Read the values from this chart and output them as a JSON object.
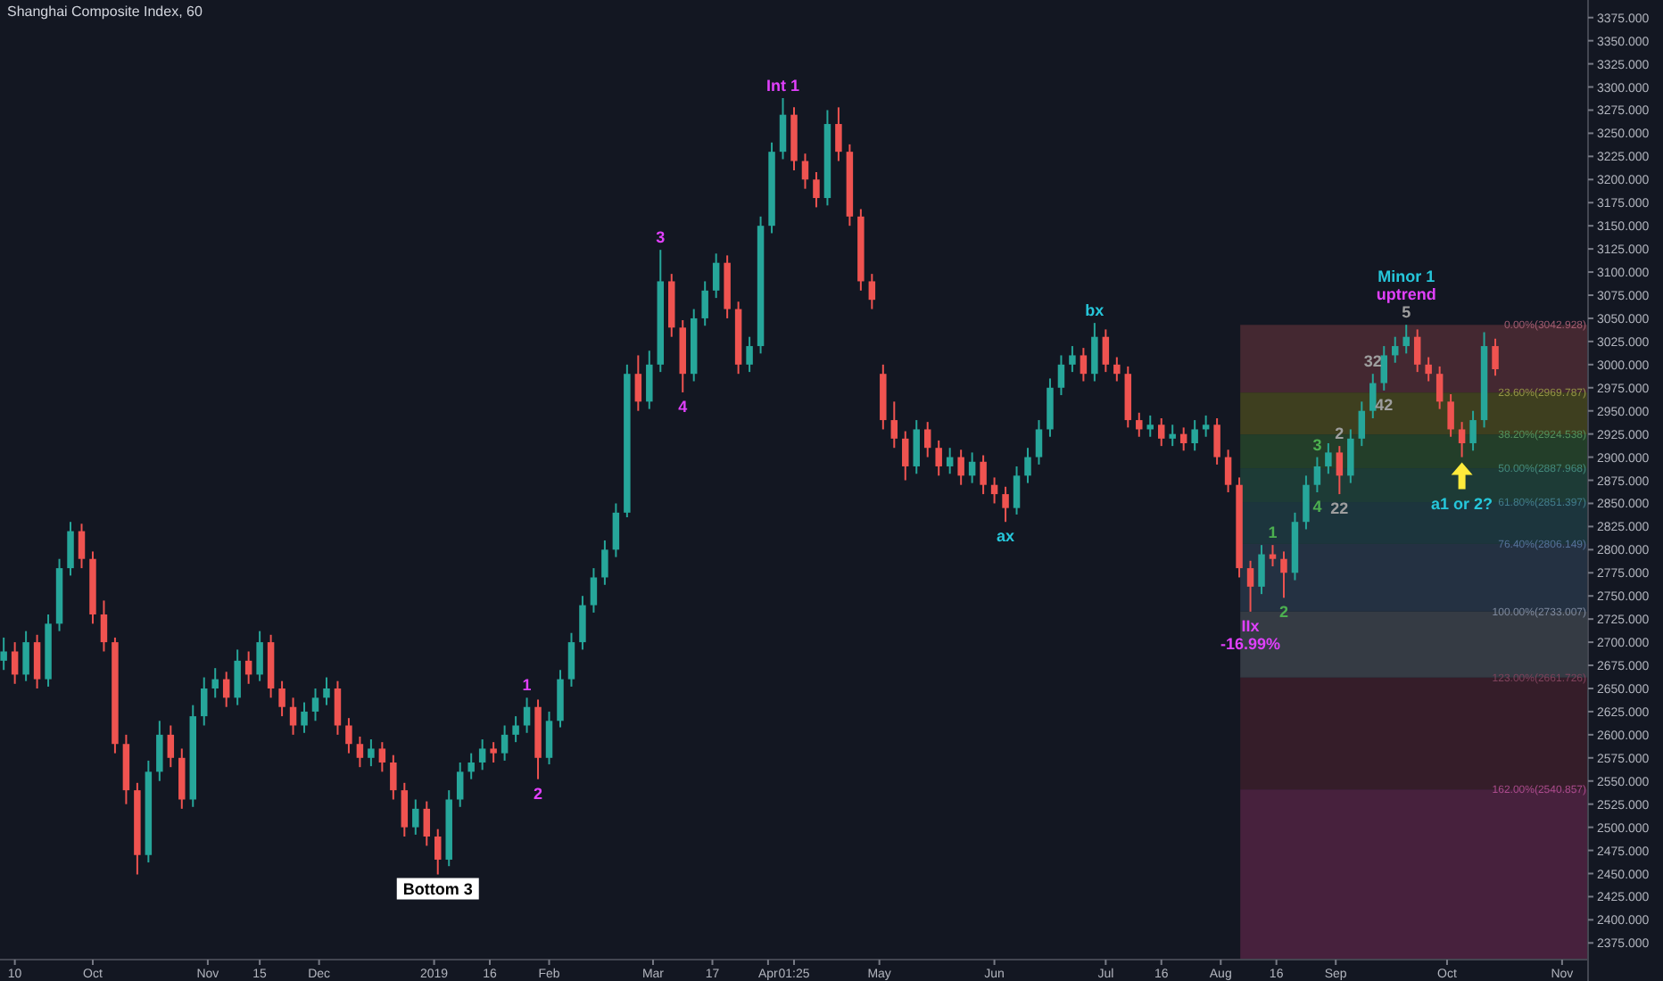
{
  "chart_data": {
    "type": "candlestick",
    "title": "Shanghai Composite Index, 60",
    "x": [
      "2018-09-07",
      "2018-09-10",
      "2018-09-13",
      "2018-09-16",
      "2018-09-19",
      "2018-09-22",
      "2018-09-25",
      "2018-09-28",
      "2018-10-01",
      "2018-10-04",
      "2018-10-07",
      "2018-10-10",
      "2018-10-13",
      "2018-10-16",
      "2018-10-19",
      "2018-10-22",
      "2018-10-25",
      "2018-10-28",
      "2018-10-31",
      "2018-11-03",
      "2018-11-06",
      "2018-11-09",
      "2018-11-12",
      "2018-11-15",
      "2018-11-18",
      "2018-11-21",
      "2018-11-24",
      "2018-11-27",
      "2018-11-30",
      "2018-12-03",
      "2018-12-06",
      "2018-12-09",
      "2018-12-12",
      "2018-12-15",
      "2018-12-18",
      "2018-12-21",
      "2018-12-24",
      "2018-12-27",
      "2018-12-30",
      "2019-01-02",
      "2019-01-05",
      "2019-01-08",
      "2019-01-11",
      "2019-01-14",
      "2019-01-17",
      "2019-01-20",
      "2019-01-23",
      "2019-01-26",
      "2019-01-29",
      "2019-02-01",
      "2019-02-04",
      "2019-02-07",
      "2019-02-10",
      "2019-02-13",
      "2019-02-16",
      "2019-02-19",
      "2019-02-22",
      "2019-02-25",
      "2019-02-28",
      "2019-03-03",
      "2019-03-06",
      "2019-03-09",
      "2019-03-12",
      "2019-03-15",
      "2019-03-18",
      "2019-03-21",
      "2019-03-24",
      "2019-03-27",
      "2019-03-30",
      "2019-04-02",
      "2019-04-05",
      "2019-04-08",
      "2019-04-11",
      "2019-04-14",
      "2019-04-17",
      "2019-04-20",
      "2019-04-23",
      "2019-04-26",
      "2019-04-29",
      "2019-05-02",
      "2019-05-05",
      "2019-05-08",
      "2019-05-11",
      "2019-05-14",
      "2019-05-17",
      "2019-05-20",
      "2019-05-23",
      "2019-05-26",
      "2019-05-29",
      "2019-06-01",
      "2019-06-04",
      "2019-06-07",
      "2019-06-10",
      "2019-06-13",
      "2019-06-16",
      "2019-06-19",
      "2019-06-22",
      "2019-06-25",
      "2019-06-28",
      "2019-07-01",
      "2019-07-04",
      "2019-07-07",
      "2019-07-10",
      "2019-07-13",
      "2019-07-16",
      "2019-07-19",
      "2019-07-22",
      "2019-07-25",
      "2019-07-28",
      "2019-07-31",
      "2019-08-03",
      "2019-08-06",
      "2019-08-09",
      "2019-08-12",
      "2019-08-15",
      "2019-08-18",
      "2019-08-21",
      "2019-08-24",
      "2019-08-27",
      "2019-08-30",
      "2019-09-02",
      "2019-09-05",
      "2019-09-08",
      "2019-09-11",
      "2019-09-14",
      "2019-09-17",
      "2019-09-20",
      "2019-09-23",
      "2019-09-26",
      "2019-09-29",
      "2019-10-02",
      "2019-10-05",
      "2019-10-08",
      "2019-10-11",
      "2019-10-14"
    ],
    "ohlc": [
      [
        2680,
        2705,
        2670,
        2690
      ],
      [
        2690,
        2700,
        2655,
        2665
      ],
      [
        2665,
        2712,
        2658,
        2700
      ],
      [
        2700,
        2708,
        2650,
        2660
      ],
      [
        2660,
        2730,
        2652,
        2720
      ],
      [
        2720,
        2790,
        2712,
        2780
      ],
      [
        2780,
        2830,
        2772,
        2820
      ],
      [
        2820,
        2828,
        2780,
        2790
      ],
      [
        2790,
        2798,
        2720,
        2730
      ],
      [
        2730,
        2745,
        2690,
        2700
      ],
      [
        2700,
        2705,
        2580,
        2590
      ],
      [
        2590,
        2600,
        2525,
        2540
      ],
      [
        2540,
        2548,
        2449,
        2470
      ],
      [
        2470,
        2572,
        2462,
        2560
      ],
      [
        2560,
        2615,
        2550,
        2600
      ],
      [
        2600,
        2610,
        2565,
        2575
      ],
      [
        2575,
        2585,
        2520,
        2530
      ],
      [
        2530,
        2632,
        2522,
        2620
      ],
      [
        2620,
        2662,
        2610,
        2650
      ],
      [
        2650,
        2672,
        2640,
        2660
      ],
      [
        2660,
        2668,
        2630,
        2640
      ],
      [
        2640,
        2692,
        2632,
        2680
      ],
      [
        2680,
        2690,
        2655,
        2665
      ],
      [
        2665,
        2712,
        2658,
        2700
      ],
      [
        2700,
        2708,
        2640,
        2650
      ],
      [
        2650,
        2658,
        2620,
        2630
      ],
      [
        2630,
        2640,
        2600,
        2610
      ],
      [
        2610,
        2635,
        2602,
        2625
      ],
      [
        2625,
        2650,
        2615,
        2640
      ],
      [
        2640,
        2662,
        2632,
        2650
      ],
      [
        2650,
        2658,
        2600,
        2610
      ],
      [
        2610,
        2618,
        2580,
        2590
      ],
      [
        2590,
        2598,
        2565,
        2575
      ],
      [
        2575,
        2595,
        2566,
        2585
      ],
      [
        2585,
        2592,
        2560,
        2570
      ],
      [
        2570,
        2578,
        2530,
        2540
      ],
      [
        2540,
        2548,
        2490,
        2500
      ],
      [
        2500,
        2530,
        2492,
        2520
      ],
      [
        2520,
        2528,
        2480,
        2490
      ],
      [
        2490,
        2498,
        2449,
        2465
      ],
      [
        2465,
        2540,
        2458,
        2530
      ],
      [
        2530,
        2570,
        2522,
        2560
      ],
      [
        2560,
        2580,
        2552,
        2570
      ],
      [
        2570,
        2595,
        2562,
        2585
      ],
      [
        2585,
        2592,
        2570,
        2580
      ],
      [
        2580,
        2610,
        2572,
        2600
      ],
      [
        2600,
        2620,
        2592,
        2610
      ],
      [
        2610,
        2640,
        2602,
        2630
      ],
      [
        2630,
        2638,
        2552,
        2575
      ],
      [
        2575,
        2625,
        2568,
        2615
      ],
      [
        2615,
        2670,
        2608,
        2660
      ],
      [
        2660,
        2710,
        2652,
        2700
      ],
      [
        2700,
        2750,
        2692,
        2740
      ],
      [
        2740,
        2780,
        2732,
        2770
      ],
      [
        2770,
        2810,
        2762,
        2800
      ],
      [
        2800,
        2850,
        2792,
        2840
      ],
      [
        2840,
        3000,
        2835,
        2990
      ],
      [
        2990,
        3010,
        2950,
        2960
      ],
      [
        2960,
        3015,
        2952,
        3000
      ],
      [
        3000,
        3124,
        2992,
        3090
      ],
      [
        3090,
        3098,
        3030,
        3040
      ],
      [
        3040,
        3048,
        2970,
        2990
      ],
      [
        2990,
        3060,
        2982,
        3050
      ],
      [
        3050,
        3090,
        3042,
        3080
      ],
      [
        3080,
        3120,
        3072,
        3110
      ],
      [
        3110,
        3118,
        3050,
        3060
      ],
      [
        3060,
        3068,
        2990,
        3000
      ],
      [
        3000,
        3030,
        2992,
        3020
      ],
      [
        3020,
        3160,
        3012,
        3150
      ],
      [
        3150,
        3240,
        3142,
        3230
      ],
      [
        3230,
        3288,
        3222,
        3270
      ],
      [
        3270,
        3278,
        3210,
        3220
      ],
      [
        3220,
        3228,
        3190,
        3200
      ],
      [
        3200,
        3208,
        3170,
        3180
      ],
      [
        3180,
        3275,
        3172,
        3260
      ],
      [
        3260,
        3278,
        3220,
        3230
      ],
      [
        3230,
        3238,
        3150,
        3160
      ],
      [
        3160,
        3168,
        3080,
        3090
      ],
      [
        3090,
        3098,
        3060,
        3070
      ],
      [
        2990,
        3000,
        2930,
        2940
      ],
      [
        2940,
        2960,
        2910,
        2920
      ],
      [
        2920,
        2928,
        2875,
        2890
      ],
      [
        2890,
        2940,
        2882,
        2930
      ],
      [
        2930,
        2938,
        2900,
        2910
      ],
      [
        2910,
        2918,
        2880,
        2890
      ],
      [
        2890,
        2910,
        2882,
        2900
      ],
      [
        2900,
        2908,
        2870,
        2880
      ],
      [
        2880,
        2905,
        2872,
        2895
      ],
      [
        2895,
        2902,
        2860,
        2870
      ],
      [
        2870,
        2878,
        2850,
        2860
      ],
      [
        2860,
        2868,
        2830,
        2845
      ],
      [
        2845,
        2890,
        2838,
        2880
      ],
      [
        2880,
        2910,
        2872,
        2900
      ],
      [
        2900,
        2940,
        2892,
        2930
      ],
      [
        2930,
        2985,
        2922,
        2975
      ],
      [
        2975,
        3010,
        2967,
        3000
      ],
      [
        3000,
        3020,
        2992,
        3010
      ],
      [
        3010,
        3018,
        2982,
        2990
      ],
      [
        2990,
        3045,
        2982,
        3030
      ],
      [
        3030,
        3038,
        2992,
        3000
      ],
      [
        3000,
        3008,
        2982,
        2990
      ],
      [
        2990,
        2998,
        2932,
        2940
      ],
      [
        2940,
        2948,
        2922,
        2930
      ],
      [
        2930,
        2945,
        2922,
        2935
      ],
      [
        2935,
        2942,
        2912,
        2920
      ],
      [
        2920,
        2935,
        2912,
        2925
      ],
      [
        2925,
        2932,
        2907,
        2915
      ],
      [
        2915,
        2940,
        2907,
        2930
      ],
      [
        2930,
        2945,
        2922,
        2935
      ],
      [
        2935,
        2942,
        2892,
        2900
      ],
      [
        2900,
        2908,
        2862,
        2870
      ],
      [
        2870,
        2878,
        2770,
        2780
      ],
      [
        2780,
        2788,
        2733,
        2760
      ],
      [
        2760,
        2805,
        2752,
        2795
      ],
      [
        2795,
        2805,
        2782,
        2790
      ],
      [
        2790,
        2798,
        2748,
        2775
      ],
      [
        2775,
        2840,
        2767,
        2830
      ],
      [
        2830,
        2880,
        2822,
        2870
      ],
      [
        2870,
        2900,
        2862,
        2890
      ],
      [
        2890,
        2915,
        2882,
        2905
      ],
      [
        2905,
        2912,
        2860,
        2880
      ],
      [
        2880,
        2930,
        2872,
        2920
      ],
      [
        2920,
        2960,
        2912,
        2950
      ],
      [
        2950,
        2990,
        2942,
        2980
      ],
      [
        2980,
        3020,
        2972,
        3010
      ],
      [
        3010,
        3030,
        3002,
        3020
      ],
      [
        3020,
        3043,
        3012,
        3030
      ],
      [
        3030,
        3038,
        2992,
        3000
      ],
      [
        3000,
        3008,
        2982,
        2990
      ],
      [
        2990,
        2998,
        2952,
        2960
      ],
      [
        2960,
        2968,
        2922,
        2930
      ],
      [
        2930,
        2938,
        2900,
        2915
      ],
      [
        2915,
        2950,
        2907,
        2940
      ],
      [
        2940,
        3035,
        2932,
        3020
      ],
      [
        3020,
        3028,
        2988,
        2995
      ]
    ],
    "xlim": [
      "2018-09-06",
      "2019-11-08"
    ],
    "xticks": [
      {
        "value": "2018-09-10",
        "label": "10"
      },
      {
        "value": "2018-10-01",
        "label": "Oct"
      },
      {
        "value": "2018-11-01",
        "label": "Nov"
      },
      {
        "value": "2018-11-15",
        "label": "15"
      },
      {
        "value": "2018-12-01",
        "label": "Dec"
      },
      {
        "value": "2019-01-01",
        "label": "2019"
      },
      {
        "value": "2019-01-16",
        "label": "16"
      },
      {
        "value": "2019-02-01",
        "label": "Feb"
      },
      {
        "value": "2019-03-01",
        "label": "Mar"
      },
      {
        "value": "2019-03-17",
        "label": "17"
      },
      {
        "value": "2019-04-01",
        "label": "Apr"
      },
      {
        "value": "2019-04-08",
        "label": "01:25"
      },
      {
        "value": "2019-05-01",
        "label": "May"
      },
      {
        "value": "2019-06-01",
        "label": "Jun"
      },
      {
        "value": "2019-07-01",
        "label": "Jul"
      },
      {
        "value": "2019-07-16",
        "label": "16"
      },
      {
        "value": "2019-08-01",
        "label": "Aug"
      },
      {
        "value": "2019-08-16",
        "label": "16"
      },
      {
        "value": "2019-09-01",
        "label": "Sep"
      },
      {
        "value": "2019-10-01",
        "label": "Oct"
      },
      {
        "value": "2019-11-01",
        "label": "Nov"
      }
    ],
    "ylim": [
      2357,
      3394
    ],
    "yticks": [
      {
        "value": 2375,
        "label": "2375.000"
      },
      {
        "value": 2400,
        "label": "2400.000"
      },
      {
        "value": 2425,
        "label": "2425.000"
      },
      {
        "value": 2450,
        "label": "2450.000"
      },
      {
        "value": 2475,
        "label": "2475.000"
      },
      {
        "value": 2500,
        "label": "2500.000"
      },
      {
        "value": 2525,
        "label": "2525.000"
      },
      {
        "value": 2550,
        "label": "2550.000"
      },
      {
        "value": 2575,
        "label": "2575.000"
      },
      {
        "value": 2600,
        "label": "2600.000"
      },
      {
        "value": 2625,
        "label": "2625.000"
      },
      {
        "value": 2650,
        "label": "2650.000"
      },
      {
        "value": 2675,
        "label": "2675.000"
      },
      {
        "value": 2700,
        "label": "2700.000"
      },
      {
        "value": 2725,
        "label": "2725.000"
      },
      {
        "value": 2750,
        "label": "2750.000"
      },
      {
        "value": 2775,
        "label": "2775.000"
      },
      {
        "value": 2800,
        "label": "2800.000"
      },
      {
        "value": 2825,
        "label": "2825.000"
      },
      {
        "value": 2850,
        "label": "2850.000"
      },
      {
        "value": 2875,
        "label": "2875.000"
      },
      {
        "value": 2900,
        "label": "2900.000"
      },
      {
        "value": 2925,
        "label": "2925.000"
      },
      {
        "value": 2950,
        "label": "2950.000"
      },
      {
        "value": 2975,
        "label": "2975.000"
      },
      {
        "value": 3000,
        "label": "3000.000"
      },
      {
        "value": 3025,
        "label": "3025.000"
      },
      {
        "value": 3050,
        "label": "3050.000"
      },
      {
        "value": 3075,
        "label": "3075.000"
      },
      {
        "value": 3100,
        "label": "3100.000"
      },
      {
        "value": 3125,
        "label": "3125.000"
      },
      {
        "value": 3150,
        "label": "3150.000"
      },
      {
        "value": 3175,
        "label": "3175.000"
      },
      {
        "value": 3200,
        "label": "3200.000"
      },
      {
        "value": 3225,
        "label": "3225.000"
      },
      {
        "value": 3250,
        "label": "3250.000"
      },
      {
        "value": 3275,
        "label": "3275.000"
      },
      {
        "value": 3300,
        "label": "3300.000"
      },
      {
        "value": 3325,
        "label": "3325.000"
      },
      {
        "value": 3350,
        "label": "3350.000"
      },
      {
        "value": 3375,
        "label": "3375.000"
      }
    ],
    "bands": [
      {
        "axis": "y",
        "from": 2969.787,
        "to": 3042.928,
        "label": "0.00%(3042.928)",
        "color": "#4a2a33"
      },
      {
        "axis": "y",
        "from": 2924.538,
        "to": 2969.787,
        "label": "23.60%(2969.787)",
        "color": "#44441f"
      },
      {
        "axis": "y",
        "from": 2887.968,
        "to": 2924.538,
        "label": "38.20%(2924.538)",
        "color": "#26422a"
      },
      {
        "axis": "y",
        "from": 2851.397,
        "to": 2887.968,
        "label": "50.00%(2887.968)",
        "color": "#1f3f38"
      },
      {
        "axis": "y",
        "from": 2806.149,
        "to": 2851.397,
        "label": "61.80%(2851.397)",
        "color": "#1e3940"
      },
      {
        "axis": "y",
        "from": 2733.007,
        "to": 2806.149,
        "label": "76.40%(2806.149)",
        "color": "#273446"
      },
      {
        "axis": "y",
        "from": 2661.726,
        "to": 2733.007,
        "label": "100.00%(2733.007)",
        "color": "#3a3f48"
      },
      {
        "axis": "y",
        "from": 2540.857,
        "to": 2661.726,
        "label": "123.00%(2661.726)",
        "color": "#3a1e2a"
      },
      {
        "axis": "y",
        "from": 2357,
        "to": 2540.857,
        "label": "162.00%(2540.857)",
        "color": "#4e2240"
      }
    ],
    "annotations": [
      {
        "text": "Int 1",
        "x": "2019-04-05",
        "y": 3288
      },
      {
        "text": "3",
        "x": "2019-03-03",
        "y": 3124
      },
      {
        "text": "4",
        "x": "2019-03-09",
        "y": 2970
      },
      {
        "text": "1",
        "x": "2019-01-26",
        "y": 2640
      },
      {
        "text": "2",
        "x": "2019-01-29",
        "y": 2552
      },
      {
        "text": "Bottom 3",
        "x": "2019-01-02",
        "y": 2449
      },
      {
        "text": "ax",
        "x": "2019-06-04",
        "y": 2830
      },
      {
        "text": "bx",
        "x": "2019-06-28",
        "y": 3045
      },
      {
        "text": "IIx",
        "x": "2019-08-09",
        "y": 2733
      },
      {
        "text": "-16.99%",
        "x": "2019-08-09",
        "y": 2733
      },
      {
        "text": "1",
        "x": "2019-08-15",
        "y": 2805
      },
      {
        "text": "2",
        "x": "2019-08-18",
        "y": 2748
      },
      {
        "text": "3",
        "x": "2019-08-27",
        "y": 2900
      },
      {
        "text": "4",
        "x": "2019-08-27",
        "y": 2862
      },
      {
        "text": "2",
        "x": "2019-09-02",
        "y": 2912
      },
      {
        "text": "22",
        "x": "2019-09-02",
        "y": 2860
      },
      {
        "text": "32",
        "x": "2019-09-11",
        "y": 2990
      },
      {
        "text": "42",
        "x": "2019-09-14",
        "y": 2972
      },
      {
        "text": "5",
        "x": "2019-09-20",
        "y": 3043
      },
      {
        "text": "uptrend",
        "x": "2019-09-20",
        "y": 3043
      },
      {
        "text": "Minor 1",
        "x": "2019-09-20",
        "y": 3043
      },
      {
        "text": "a1 or 2?",
        "x": "2019-10-05",
        "y": 2900
      }
    ]
  }
}
